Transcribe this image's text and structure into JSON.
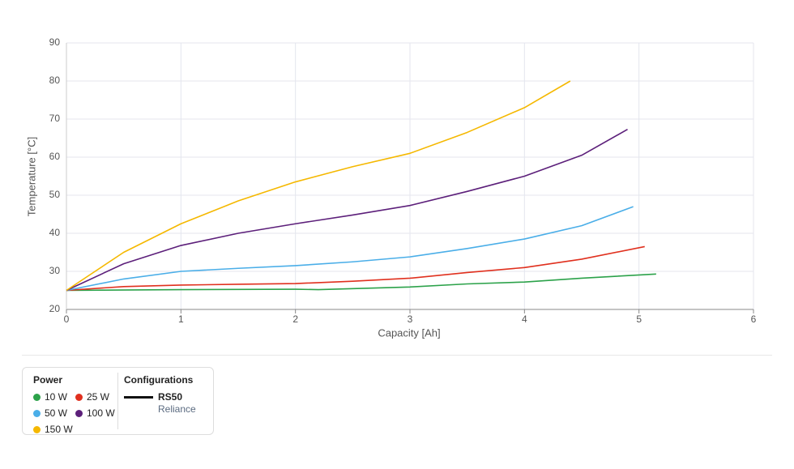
{
  "chart_data": {
    "type": "line",
    "xlabel": "Capacity [Ah]",
    "ylabel": "Temperature [°C]",
    "xlim": [
      0,
      6
    ],
    "xticks": [
      0,
      1,
      2,
      3,
      4,
      5,
      6
    ],
    "ylim": [
      20,
      90
    ],
    "yticks": [
      20,
      30,
      40,
      50,
      60,
      70,
      80,
      90
    ],
    "grid": true,
    "legend_title": "Power",
    "series": [
      {
        "name": "10 W",
        "color": "#2ca24a",
        "x": [
          0,
          1,
          2,
          2.2,
          3,
          3.5,
          4,
          4.5,
          5.15
        ],
        "values": [
          25,
          25.2,
          25.3,
          25.2,
          25.9,
          26.7,
          27.2,
          28.2,
          29.3
        ]
      },
      {
        "name": "25 W",
        "color": "#e0301e",
        "x": [
          0,
          0.5,
          1,
          1.5,
          2,
          2.5,
          3,
          3.5,
          4,
          4.5,
          5.05
        ],
        "values": [
          25,
          26,
          26.4,
          26.6,
          26.8,
          27.4,
          28.2,
          29.7,
          31,
          33.2,
          36.5
        ]
      },
      {
        "name": "50 W",
        "color": "#4aaee8",
        "x": [
          0,
          0.5,
          1,
          1.5,
          2,
          2.5,
          3,
          3.5,
          4,
          4.5,
          4.95
        ],
        "values": [
          25,
          28,
          30,
          30.8,
          31.5,
          32.5,
          33.8,
          36,
          38.5,
          42,
          47
        ]
      },
      {
        "name": "100 W",
        "color": "#5c1f7a",
        "x": [
          0,
          0.5,
          1,
          1.5,
          2,
          2.5,
          3,
          3.5,
          4,
          4.5,
          4.9
        ],
        "values": [
          25,
          32,
          36.8,
          40,
          42.5,
          44.8,
          47.3,
          51,
          55,
          60.5,
          67.3
        ]
      },
      {
        "name": "150 W",
        "color": "#f5b800",
        "x": [
          0,
          0.5,
          1,
          1.5,
          2,
          2.5,
          3,
          3.5,
          4,
          4.4
        ],
        "values": [
          25,
          35,
          42.5,
          48.5,
          53.5,
          57.5,
          61,
          66.5,
          73,
          80
        ]
      }
    ],
    "configurations": {
      "title": "Configurations",
      "items": [
        {
          "name": "RS50",
          "subtitle": "Reliance"
        }
      ]
    }
  }
}
